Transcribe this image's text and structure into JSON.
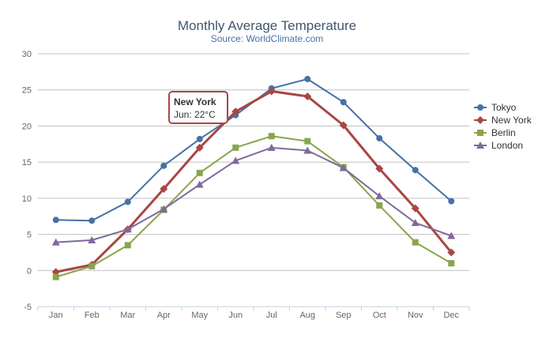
{
  "chart_data": {
    "type": "line",
    "title": "Monthly Average Temperature",
    "subtitle": "Source: WorldClimate.com",
    "categories": [
      "Jan",
      "Feb",
      "Mar",
      "Apr",
      "May",
      "Jun",
      "Jul",
      "Aug",
      "Sep",
      "Oct",
      "Nov",
      "Dec"
    ],
    "ylim": [
      -5,
      30
    ],
    "yticks": [
      -5,
      0,
      5,
      10,
      15,
      20,
      25,
      30
    ],
    "grid": true,
    "legend_position": "right",
    "series": [
      {
        "name": "Tokyo",
        "color": "#4572a7",
        "marker": "circle",
        "values": [
          7.0,
          6.9,
          9.5,
          14.5,
          18.2,
          21.5,
          25.2,
          26.5,
          23.3,
          18.3,
          13.9,
          9.6
        ]
      },
      {
        "name": "New York",
        "color": "#aa4643",
        "marker": "diamond",
        "values": [
          -0.2,
          0.8,
          5.7,
          11.3,
          17.0,
          22.0,
          24.8,
          24.1,
          20.1,
          14.1,
          8.6,
          2.5
        ]
      },
      {
        "name": "Berlin",
        "color": "#89a54e",
        "marker": "square",
        "values": [
          -0.9,
          0.6,
          3.5,
          8.4,
          13.5,
          17.0,
          18.6,
          17.9,
          14.3,
          9.0,
          3.9,
          1.0
        ]
      },
      {
        "name": "London",
        "color": "#80699b",
        "marker": "triangle",
        "values": [
          3.9,
          4.2,
          5.7,
          8.5,
          11.9,
          15.2,
          17.0,
          16.6,
          14.2,
          10.3,
          6.6,
          4.8
        ]
      }
    ],
    "tooltip": {
      "series": "New York",
      "title": "New York",
      "text": "Jun: 22°C",
      "category_index": 5,
      "border_color": "#aa4643"
    }
  }
}
